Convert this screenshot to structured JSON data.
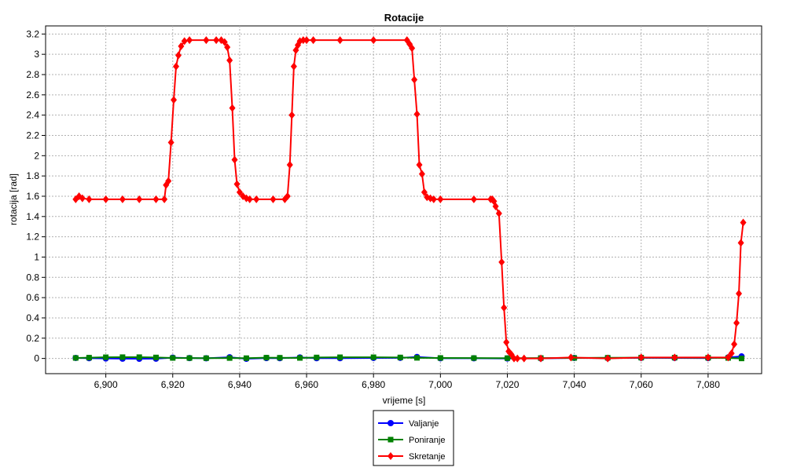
{
  "chart_data": {
    "type": "line",
    "title": "Rotacije",
    "xlabel": "vrijeme [s]",
    "ylabel": "rotacija [rad]",
    "xlim": [
      6882,
      6096
    ],
    "xlim_note_removed": true,
    "ylim": [
      -0.15,
      3.28
    ],
    "xticks": [
      6900,
      6920,
      6940,
      6960,
      6980,
      7000,
      7020,
      7040,
      7060,
      7080
    ],
    "xtick_labels": [
      "6,900",
      "6,920",
      "6,940",
      "6,960",
      "6,980",
      "7,000",
      "7,020",
      "7,040",
      "7,060",
      "7,080"
    ],
    "yticks": [
      0,
      0.2,
      0.4,
      0.6,
      0.8,
      1,
      1.2,
      1.4,
      1.6,
      1.8,
      2,
      2.2,
      2.4,
      2.6,
      2.8,
      3,
      3.2
    ],
    "ytick_labels": [
      "0",
      "0.2",
      "0.4",
      "0.6",
      "0.8",
      "1",
      "1.2",
      "1.4",
      "1.6",
      "1.8",
      "2",
      "2.2",
      "2.4",
      "2.6",
      "2.8",
      "3",
      "3.2"
    ],
    "grid": true,
    "legend_position": "bottom-center",
    "series": [
      {
        "name": "Valjanje",
        "color": "#0000ff",
        "marker": "circle",
        "x": [
          6891,
          6895,
          6900,
          6905,
          6910,
          6915,
          6920,
          6925,
          6930,
          6937,
          6942,
          6948,
          6952,
          6958,
          6963,
          6970,
          6980,
          6988,
          6993,
          7000,
          7010,
          7020,
          7030,
          7040,
          7050,
          7060,
          7070,
          7080,
          7086,
          7090
        ],
        "y": [
          0.005,
          0.003,
          0.0,
          -0.002,
          -0.003,
          -0.002,
          0.008,
          0.004,
          0.002,
          0.012,
          -0.003,
          0.004,
          0.003,
          0.01,
          0.003,
          0.003,
          0.005,
          0.006,
          0.015,
          0.002,
          0.002,
          0.0,
          0.001,
          0.005,
          0.004,
          0.006,
          0.005,
          0.004,
          0.01,
          0.02
        ]
      },
      {
        "name": "Poniranje",
        "color": "#008000",
        "marker": "square",
        "x": [
          6891,
          6895,
          6900,
          6905,
          6910,
          6915,
          6920,
          6925,
          6930,
          6937,
          6942,
          6948,
          6952,
          6958,
          6963,
          6970,
          6980,
          6988,
          6993,
          7000,
          7010,
          7020,
          7030,
          7040,
          7050,
          7060,
          7070,
          7080,
          7086,
          7090
        ],
        "y": [
          0.005,
          0.008,
          0.012,
          0.013,
          0.013,
          0.01,
          0.005,
          0.004,
          0.003,
          0.004,
          0.003,
          0.008,
          0.007,
          0.005,
          0.01,
          0.012,
          0.012,
          0.01,
          0.006,
          0.005,
          0.004,
          0.003,
          0.004,
          0.005,
          0.007,
          0.008,
          0.008,
          0.007,
          0.005,
          0.0
        ]
      },
      {
        "name": "Skretanje",
        "color": "#ff0000",
        "marker": "diamond",
        "x": [
          6891,
          6892,
          6893,
          6895,
          6900,
          6905,
          6910,
          6915,
          6917.5,
          6918,
          6918.7,
          6919.5,
          6920.3,
          6921,
          6921.7,
          6922.5,
          6923.5,
          6925,
          6930,
          6933,
          6934.5,
          6935.5,
          6936.3,
          6937,
          6937.8,
          6938.5,
          6939.2,
          6940,
          6941,
          6942,
          6943,
          6945,
          6950,
          6953.5,
          6954.3,
          6955,
          6955.6,
          6956.2,
          6956.8,
          6957.4,
          6958,
          6959,
          6960,
          6962,
          6970,
          6980,
          6990,
          6990.8,
          6991.5,
          6992.2,
          6993,
          6993.7,
          6994.5,
          6995.2,
          6996,
          6997,
          6998,
          7000,
          7010,
          7015,
          7015.5,
          7016,
          7016.5,
          7017.5,
          7018.3,
          7019,
          7019.7,
          7020.4,
          7021.2,
          7022,
          7023,
          7025,
          7030,
          7039,
          7050,
          7060,
          7070,
          7080,
          7086,
          7087,
          7087.8,
          7088.5,
          7089.2,
          7089.8,
          7090.5
        ],
        "y": [
          1.57,
          1.6,
          1.58,
          1.57,
          1.57,
          1.57,
          1.57,
          1.57,
          1.57,
          1.71,
          1.75,
          2.13,
          2.55,
          2.88,
          2.99,
          3.08,
          3.13,
          3.14,
          3.14,
          3.14,
          3.14,
          3.12,
          3.07,
          2.94,
          2.47,
          1.96,
          1.72,
          1.64,
          1.6,
          1.58,
          1.57,
          1.57,
          1.57,
          1.57,
          1.6,
          1.91,
          2.4,
          2.88,
          3.04,
          3.09,
          3.13,
          3.14,
          3.14,
          3.14,
          3.14,
          3.14,
          3.14,
          3.1,
          3.06,
          2.75,
          2.41,
          1.91,
          1.82,
          1.64,
          1.59,
          1.58,
          1.57,
          1.57,
          1.57,
          1.57,
          1.57,
          1.55,
          1.5,
          1.43,
          0.95,
          0.5,
          0.16,
          0.07,
          0.04,
          0.0,
          0.0,
          0.0,
          0.0,
          0.01,
          0.0,
          0.01,
          0.01,
          0.01,
          0.01,
          0.05,
          0.14,
          0.35,
          0.64,
          1.14,
          1.34
        ]
      }
    ]
  }
}
